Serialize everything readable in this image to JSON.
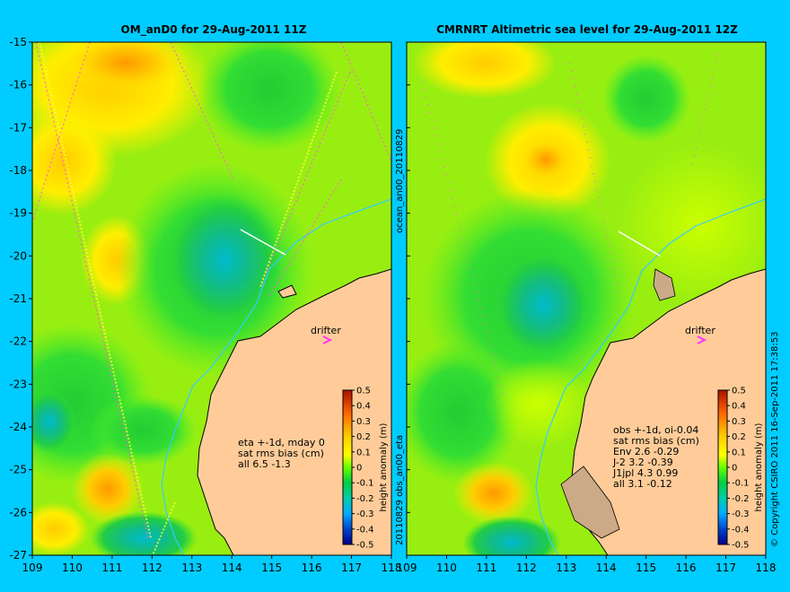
{
  "chart_data": [
    {
      "type": "heatmap",
      "title": "OM_anD0 for 29-Aug-2011 11Z",
      "xlim": [
        109,
        118
      ],
      "ylim": [
        -27,
        -15
      ],
      "x_ticks": [
        "109",
        "110",
        "111",
        "112",
        "113",
        "114",
        "115",
        "116",
        "117",
        "118"
      ],
      "y_ticks": [
        "-15",
        "-16",
        "-17",
        "-18",
        "-19",
        "-20",
        "-21",
        "-22",
        "-23",
        "-24",
        "-25",
        "-26",
        "-27"
      ],
      "colorbar": {
        "label": "height anomaly (m)",
        "range": [
          -0.5,
          0.5
        ],
        "ticks": [
          "0.5",
          "0.4",
          "0.3",
          "0.2",
          "0.1",
          "0",
          "-0.1",
          "-0.2",
          "-0.3",
          "-0.4",
          "-0.5"
        ]
      },
      "drifter_label": "drifter",
      "stats": [
        "eta +-1d, mday 0",
        "sat rms bias (cm)",
        "all 6.5 -1.3"
      ],
      "side_label_top": "ocean_an00_20110829",
      "side_label_bottom": "20110829 obs_an00_eta"
    },
    {
      "type": "heatmap",
      "title": "CMRNRT Altimetric sea level  for 29-Aug-2011 12Z",
      "xlim": [
        109,
        118
      ],
      "ylim": [
        -27,
        -15
      ],
      "x_ticks": [
        "109",
        "110",
        "111",
        "112",
        "113",
        "114",
        "115",
        "116",
        "117",
        "118"
      ],
      "colorbar": {
        "label": "height anomaly (m)",
        "range": [
          -0.5,
          0.5
        ],
        "ticks": [
          "0.5",
          "0.4",
          "0.3",
          "0.2",
          "0.1",
          "0",
          "-0.1",
          "-0.2",
          "-0.3",
          "-0.4",
          "-0.5"
        ]
      },
      "drifter_label": "drifter",
      "stats": [
        "obs +-1d, oi-0.04",
        "sat rms bias (cm)",
        "Env   2.6 -0.29",
        "J-2   3.2 -0.39",
        "J1jpl 4.3 0.99",
        "all 3.1 -0.12"
      ],
      "side_label_right": "© Copyright CSIRO 2011   16-Sep-2011 17:38:53"
    }
  ]
}
